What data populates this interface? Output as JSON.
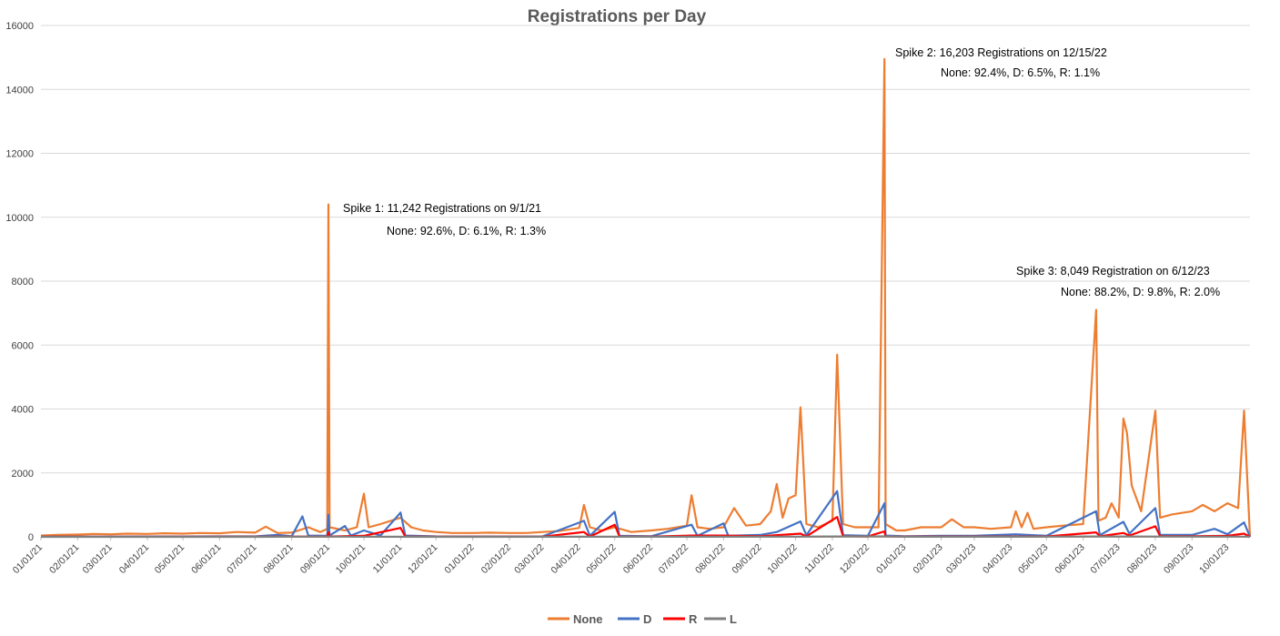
{
  "chart_data": {
    "type": "line",
    "title": "Registrations per Day",
    "xlabel": "",
    "ylabel": "",
    "ylim": [
      0,
      16000
    ],
    "yticks": [
      0,
      2000,
      4000,
      6000,
      8000,
      10000,
      12000,
      14000,
      16000
    ],
    "xticks": [
      "01/01/21",
      "02/01/21",
      "03/01/21",
      "04/01/21",
      "05/01/21",
      "06/01/21",
      "07/01/21",
      "08/01/21",
      "09/01/21",
      "10/01/21",
      "11/01/21",
      "12/01/21",
      "01/01/22",
      "02/01/22",
      "03/01/22",
      "04/01/22",
      "05/01/22",
      "06/01/22",
      "07/01/22",
      "08/01/22",
      "09/01/22",
      "10/01/22",
      "11/01/22",
      "12/01/22",
      "01/01/23",
      "02/01/23",
      "03/01/23",
      "04/01/23",
      "05/01/23",
      "06/01/23",
      "07/01/23",
      "08/01/23",
      "09/01/23",
      "10/01/23"
    ],
    "grid": true,
    "legend_position": "bottom",
    "series": [
      {
        "name": "None",
        "color": "#ED7D31",
        "points": [
          [
            "01/01/21",
            40
          ],
          [
            "01/15/21",
            60
          ],
          [
            "02/01/21",
            70
          ],
          [
            "02/15/21",
            90
          ],
          [
            "03/01/21",
            80
          ],
          [
            "03/15/21",
            100
          ],
          [
            "04/01/21",
            90
          ],
          [
            "04/15/21",
            110
          ],
          [
            "05/01/21",
            100
          ],
          [
            "05/15/21",
            120
          ],
          [
            "06/01/21",
            110
          ],
          [
            "06/15/21",
            150
          ],
          [
            "07/01/21",
            130
          ],
          [
            "07/10/21",
            320
          ],
          [
            "07/20/21",
            120
          ],
          [
            "08/01/21",
            130
          ],
          [
            "08/15/21",
            300
          ],
          [
            "08/25/21",
            150
          ],
          [
            "08/31/21",
            250
          ],
          [
            "09/01/21",
            10400
          ],
          [
            "09/02/21",
            300
          ],
          [
            "09/15/21",
            200
          ],
          [
            "09/25/21",
            300
          ],
          [
            "10/01/21",
            1350
          ],
          [
            "10/05/21",
            300
          ],
          [
            "10/15/21",
            400
          ],
          [
            "11/01/21",
            600
          ],
          [
            "11/10/21",
            300
          ],
          [
            "11/20/21",
            200
          ],
          [
            "12/01/21",
            150
          ],
          [
            "12/15/21",
            120
          ],
          [
            "01/01/22",
            120
          ],
          [
            "01/15/22",
            130
          ],
          [
            "02/01/22",
            120
          ],
          [
            "02/15/22",
            120
          ],
          [
            "03/01/22",
            150
          ],
          [
            "03/15/22",
            180
          ],
          [
            "04/01/22",
            280
          ],
          [
            "04/05/22",
            1000
          ],
          [
            "04/10/22",
            300
          ],
          [
            "04/20/22",
            200
          ],
          [
            "05/01/22",
            300
          ],
          [
            "05/15/22",
            150
          ],
          [
            "06/01/22",
            200
          ],
          [
            "06/15/22",
            250
          ],
          [
            "07/01/22",
            350
          ],
          [
            "07/05/22",
            1300
          ],
          [
            "07/10/22",
            300
          ],
          [
            "07/20/22",
            250
          ],
          [
            "08/01/22",
            300
          ],
          [
            "08/10/22",
            900
          ],
          [
            "08/20/22",
            350
          ],
          [
            "09/01/22",
            400
          ],
          [
            "09/10/22",
            800
          ],
          [
            "09/15/22",
            1650
          ],
          [
            "09/20/22",
            600
          ],
          [
            "09/25/22",
            1200
          ],
          [
            "10/01/22",
            1300
          ],
          [
            "10/05/22",
            4050
          ],
          [
            "10/10/22",
            400
          ],
          [
            "10/20/22",
            300
          ],
          [
            "11/01/22",
            500
          ],
          [
            "11/05/22",
            5700
          ],
          [
            "11/10/22",
            400
          ],
          [
            "11/20/22",
            300
          ],
          [
            "12/01/22",
            300
          ],
          [
            "12/10/22",
            300
          ],
          [
            "12/15/22",
            14950
          ],
          [
            "12/16/22",
            400
          ],
          [
            "12/25/22",
            200
          ],
          [
            "01/01/23",
            200
          ],
          [
            "01/15/23",
            300
          ],
          [
            "02/01/23",
            300
          ],
          [
            "02/10/23",
            550
          ],
          [
            "02/20/23",
            300
          ],
          [
            "03/01/23",
            300
          ],
          [
            "03/15/23",
            250
          ],
          [
            "04/01/23",
            300
          ],
          [
            "04/05/23",
            800
          ],
          [
            "04/10/23",
            300
          ],
          [
            "04/15/23",
            750
          ],
          [
            "04/20/23",
            250
          ],
          [
            "05/01/23",
            300
          ],
          [
            "05/15/23",
            350
          ],
          [
            "06/01/23",
            400
          ],
          [
            "06/12/23",
            7100
          ],
          [
            "06/14/23",
            500
          ],
          [
            "06/20/23",
            600
          ],
          [
            "06/25/23",
            1050
          ],
          [
            "07/01/23",
            600
          ],
          [
            "07/05/23",
            3700
          ],
          [
            "07/08/23",
            3250
          ],
          [
            "07/12/23",
            1600
          ],
          [
            "07/20/23",
            800
          ],
          [
            "08/01/23",
            3950
          ],
          [
            "08/05/23",
            600
          ],
          [
            "08/15/23",
            700
          ],
          [
            "09/01/23",
            800
          ],
          [
            "09/10/23",
            1000
          ],
          [
            "09/20/23",
            800
          ],
          [
            "10/01/23",
            1050
          ],
          [
            "10/10/23",
            900
          ],
          [
            "10/15/23",
            3950
          ],
          [
            "10/20/23",
            0
          ]
        ]
      },
      {
        "name": "D",
        "color": "#4472C4",
        "points": [
          [
            "01/01/21",
            5
          ],
          [
            "02/01/21",
            8
          ],
          [
            "03/01/21",
            8
          ],
          [
            "04/01/21",
            10
          ],
          [
            "05/01/21",
            10
          ],
          [
            "06/01/21",
            15
          ],
          [
            "07/01/21",
            15
          ],
          [
            "07/20/21",
            60
          ],
          [
            "08/01/21",
            20
          ],
          [
            "08/10/21",
            640
          ],
          [
            "08/15/21",
            40
          ],
          [
            "08/31/21",
            30
          ],
          [
            "09/01/21",
            690
          ],
          [
            "09/02/21",
            40
          ],
          [
            "09/15/21",
            340
          ],
          [
            "09/20/21",
            40
          ],
          [
            "10/01/21",
            200
          ],
          [
            "10/15/21",
            40
          ],
          [
            "11/01/21",
            760
          ],
          [
            "11/05/21",
            40
          ],
          [
            "12/01/21",
            15
          ],
          [
            "01/01/22",
            10
          ],
          [
            "02/01/22",
            10
          ],
          [
            "03/01/22",
            15
          ],
          [
            "04/05/22",
            500
          ],
          [
            "04/10/22",
            30
          ],
          [
            "05/01/22",
            780
          ],
          [
            "05/05/22",
            30
          ],
          [
            "06/01/22",
            20
          ],
          [
            "07/05/22",
            380
          ],
          [
            "07/10/22",
            30
          ],
          [
            "08/01/22",
            420
          ],
          [
            "08/05/22",
            30
          ],
          [
            "09/01/22",
            60
          ],
          [
            "09/15/22",
            150
          ],
          [
            "10/05/22",
            480
          ],
          [
            "10/10/22",
            50
          ],
          [
            "11/05/22",
            1430
          ],
          [
            "11/10/22",
            50
          ],
          [
            "12/01/22",
            30
          ],
          [
            "12/15/22",
            1050
          ],
          [
            "12/16/22",
            40
          ],
          [
            "01/01/23",
            20
          ],
          [
            "02/01/23",
            30
          ],
          [
            "03/01/23",
            30
          ],
          [
            "04/05/23",
            80
          ],
          [
            "05/01/23",
            30
          ],
          [
            "06/12/23",
            800
          ],
          [
            "06/15/23",
            50
          ],
          [
            "07/05/23",
            470
          ],
          [
            "07/10/23",
            100
          ],
          [
            "08/01/23",
            900
          ],
          [
            "08/05/23",
            60
          ],
          [
            "09/01/23",
            60
          ],
          [
            "09/20/23",
            250
          ],
          [
            "10/01/23",
            80
          ],
          [
            "10/15/23",
            450
          ],
          [
            "10/20/23",
            0
          ]
        ]
      },
      {
        "name": "R",
        "color": "#FF0000",
        "points": [
          [
            "01/01/21",
            2
          ],
          [
            "02/01/21",
            3
          ],
          [
            "03/01/21",
            3
          ],
          [
            "04/01/21",
            4
          ],
          [
            "05/01/21",
            4
          ],
          [
            "06/01/21",
            5
          ],
          [
            "07/01/21",
            5
          ],
          [
            "08/01/21",
            8
          ],
          [
            "08/31/21",
            10
          ],
          [
            "09/01/21",
            140
          ],
          [
            "09/02/21",
            10
          ],
          [
            "10/01/21",
            30
          ],
          [
            "11/01/21",
            280
          ],
          [
            "11/05/21",
            10
          ],
          [
            "12/01/21",
            5
          ],
          [
            "01/01/22",
            5
          ],
          [
            "02/01/22",
            5
          ],
          [
            "03/01/22",
            6
          ],
          [
            "04/05/22",
            150
          ],
          [
            "04/10/22",
            8
          ],
          [
            "05/01/22",
            380
          ],
          [
            "05/05/22",
            10
          ],
          [
            "06/01/22",
            8
          ],
          [
            "07/05/22",
            40
          ],
          [
            "08/01/22",
            40
          ],
          [
            "09/01/22",
            20
          ],
          [
            "10/05/22",
            100
          ],
          [
            "10/10/22",
            15
          ],
          [
            "11/05/22",
            620
          ],
          [
            "11/10/22",
            20
          ],
          [
            "12/01/22",
            10
          ],
          [
            "12/15/22",
            170
          ],
          [
            "12/16/22",
            15
          ],
          [
            "01/01/23",
            8
          ],
          [
            "02/01/23",
            10
          ],
          [
            "03/01/23",
            10
          ],
          [
            "04/01/23",
            10
          ],
          [
            "05/01/23",
            10
          ],
          [
            "06/12/23",
            140
          ],
          [
            "06/15/23",
            20
          ],
          [
            "07/05/23",
            120
          ],
          [
            "07/10/23",
            40
          ],
          [
            "08/01/23",
            330
          ],
          [
            "08/05/23",
            20
          ],
          [
            "09/01/23",
            20
          ],
          [
            "10/01/23",
            30
          ],
          [
            "10/15/23",
            100
          ],
          [
            "10/20/23",
            0
          ]
        ]
      },
      {
        "name": "L",
        "color": "#7F7F7F",
        "points": [
          [
            "01/01/21",
            1
          ],
          [
            "04/01/21",
            1
          ],
          [
            "07/01/21",
            1
          ],
          [
            "09/01/21",
            8
          ],
          [
            "10/01/21",
            2
          ],
          [
            "01/01/22",
            1
          ],
          [
            "04/01/22",
            2
          ],
          [
            "07/01/22",
            2
          ],
          [
            "10/05/22",
            5
          ],
          [
            "11/05/22",
            10
          ],
          [
            "12/15/22",
            15
          ],
          [
            "01/01/23",
            2
          ],
          [
            "04/01/23",
            2
          ],
          [
            "06/12/23",
            12
          ],
          [
            "08/01/23",
            8
          ],
          [
            "10/15/23",
            5
          ],
          [
            "10/20/23",
            0
          ]
        ]
      }
    ],
    "annotations": [
      {
        "lines": [
          "Spike 1: 11,242 Registrations on 9/1/21",
          "None: 92.6%, D: 6.1%, R: 1.3%"
        ]
      },
      {
        "lines": [
          "Spike 2: 16,203 Registrations on 12/15/22",
          "None: 92.4%, D: 6.5%, R: 1.1%"
        ]
      },
      {
        "lines": [
          "Spike 3: 8,049 Registration on 6/12/23",
          "None: 88.2%, D: 9.8%, R: 2.0%"
        ]
      }
    ]
  }
}
